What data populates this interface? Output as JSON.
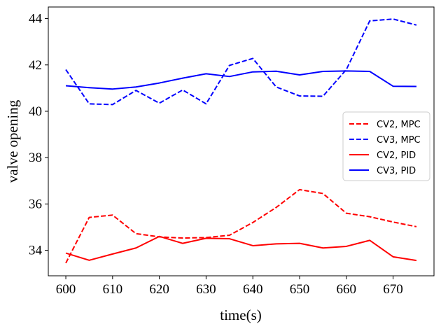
{
  "chart_data": {
    "type": "line",
    "xlabel": "time(s)",
    "ylabel": "valve opening",
    "xlim": [
      596.25,
      678.75
    ],
    "ylim": [
      32.9,
      44.5
    ],
    "xticks": [
      600,
      610,
      620,
      630,
      640,
      650,
      660,
      670
    ],
    "yticks": [
      34,
      36,
      38,
      40,
      42,
      44
    ],
    "grid": false,
    "legend_position": "center-right",
    "series": [
      {
        "name": "CV2, MPC",
        "color": "#ff0000",
        "dash": "dashed",
        "x": [
          600,
          605,
          610,
          615,
          620,
          625,
          630,
          635,
          640,
          645,
          650,
          655,
          660,
          665,
          670,
          675
        ],
        "y": [
          33.45,
          35.42,
          35.52,
          34.72,
          34.58,
          34.53,
          34.55,
          34.65,
          35.2,
          35.85,
          36.62,
          36.45,
          35.6,
          35.45,
          35.22,
          35.02
        ]
      },
      {
        "name": "CV3, MPC",
        "color": "#0000ff",
        "dash": "dashed",
        "x": [
          600,
          605,
          610,
          615,
          620,
          625,
          630,
          635,
          640,
          645,
          650,
          655,
          660,
          665,
          670,
          675
        ],
        "y": [
          41.8,
          40.32,
          40.29,
          40.9,
          40.35,
          40.92,
          40.32,
          41.98,
          42.28,
          41.05,
          40.66,
          40.65,
          41.8,
          43.9,
          43.98,
          43.72
        ]
      },
      {
        "name": "CV2, PID",
        "color": "#ff0000",
        "dash": "solid",
        "x": [
          600,
          605,
          610,
          615,
          620,
          625,
          630,
          635,
          640,
          645,
          650,
          655,
          660,
          665,
          670,
          675
        ],
        "y": [
          33.88,
          33.57,
          33.84,
          34.1,
          34.6,
          34.3,
          34.52,
          34.5,
          34.2,
          34.28,
          34.3,
          34.1,
          34.17,
          34.43,
          33.72,
          33.56
        ]
      },
      {
        "name": "CV3, PID",
        "color": "#0000ff",
        "dash": "solid",
        "x": [
          600,
          605,
          610,
          615,
          620,
          625,
          630,
          635,
          640,
          645,
          650,
          655,
          660,
          665,
          670,
          675
        ],
        "y": [
          41.1,
          41.02,
          40.96,
          41.05,
          41.22,
          41.43,
          41.62,
          41.5,
          41.7,
          41.73,
          41.57,
          41.72,
          41.74,
          41.72,
          41.08,
          41.07
        ]
      }
    ]
  }
}
